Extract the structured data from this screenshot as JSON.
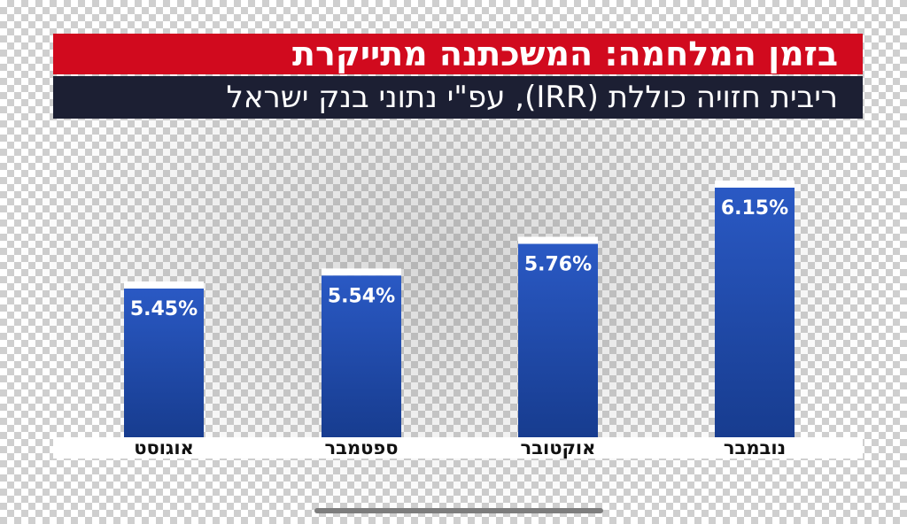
{
  "title": "בזמן המלחמה: המשכתנה מתייקרת",
  "subtitle": "ריבית חזויה כוללת (IRR), עפ\"י נתוני בנק ישראל",
  "colors": {
    "title_bg": "#d10a1e",
    "subtitle_bg": "#1c1f33",
    "bar_top": "#2a59c4",
    "bar_bottom": "#173c8f",
    "bar_cap": "#ffffff"
  },
  "chart_data": {
    "type": "bar",
    "categories": [
      "אוגוסט",
      "ספטמבר",
      "אוקטובר",
      "נובמבר"
    ],
    "values": [
      5.45,
      5.54,
      5.76,
      6.15
    ],
    "value_labels": [
      "5.45%",
      "5.54%",
      "5.76%",
      "6.15%"
    ],
    "title": "בזמן המלחמה: המשכתנה מתייקרת",
    "subtitle": "ריבית חזויה כוללת (IRR), עפ\"י נתוני בנק ישראל",
    "xlabel": "",
    "ylabel": "",
    "grid": false,
    "legend": "none"
  }
}
